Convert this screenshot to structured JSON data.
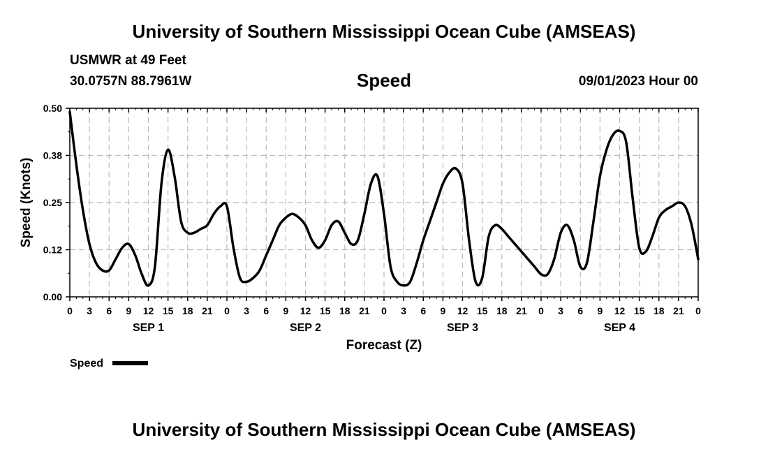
{
  "header": {
    "top_title": "University of Southern Mississippi Ocean Cube (AMSEAS)",
    "station": "USMWR at 49 Feet",
    "coords": "30.0757N  88.7961W",
    "datetime": "09/01/2023 Hour 00",
    "bottom_title": "University of Southern Mississippi Ocean Cube (AMSEAS)"
  },
  "legend": {
    "label": "Speed"
  },
  "colors": {
    "line": "#000000",
    "grid": "#bbbbbb",
    "axis": "#000000"
  },
  "chart_data": {
    "type": "line",
    "title": "Speed",
    "xlabel": "Forecast (Z)",
    "ylabel": "Speed (Knots)",
    "xlim": [
      0,
      96
    ],
    "ylim": [
      0,
      0.5
    ],
    "yticks": [
      0.0,
      0.125,
      0.25,
      0.375,
      0.5
    ],
    "ytick_labels": [
      "0.00",
      "0.12",
      "0.25",
      "0.38",
      "0.50"
    ],
    "xtick_labels": [
      "0",
      "3",
      "6",
      "9",
      "12",
      "15",
      "18",
      "21",
      "0",
      "3",
      "6",
      "9",
      "12",
      "15",
      "18",
      "21",
      "0",
      "3",
      "6",
      "9",
      "12",
      "15",
      "18",
      "21",
      "0",
      "3",
      "6",
      "9",
      "12",
      "15",
      "18",
      "21",
      "0"
    ],
    "day_labels": [
      {
        "x": 12,
        "label": "SEP 1"
      },
      {
        "x": 36,
        "label": "SEP 2"
      },
      {
        "x": 60,
        "label": "SEP 3"
      },
      {
        "x": 84,
        "label": "SEP 4"
      }
    ],
    "grid": true,
    "series": [
      {
        "name": "Speed",
        "x": [
          0,
          1,
          2,
          3,
          4,
          5,
          6,
          7,
          8,
          9,
          10,
          11,
          12,
          13,
          14,
          15,
          16,
          17,
          18,
          19,
          20,
          21,
          22,
          23,
          24,
          25,
          26,
          27,
          28,
          29,
          30,
          31,
          32,
          33,
          34,
          35,
          36,
          37,
          38,
          39,
          40,
          41,
          42,
          43,
          44,
          45,
          46,
          47,
          48,
          49,
          50,
          51,
          52,
          53,
          54,
          55,
          56,
          57,
          58,
          59,
          60,
          61,
          62,
          63,
          64,
          65,
          66,
          67,
          68,
          69,
          70,
          71,
          72,
          73,
          74,
          75,
          76,
          77,
          78,
          79,
          80,
          81,
          82,
          83,
          84,
          85,
          86,
          87,
          88,
          89,
          90,
          91,
          92,
          93,
          94,
          95,
          96
        ],
        "values": [
          0.49,
          0.35,
          0.23,
          0.14,
          0.09,
          0.07,
          0.07,
          0.1,
          0.13,
          0.14,
          0.11,
          0.06,
          0.03,
          0.08,
          0.3,
          0.39,
          0.32,
          0.2,
          0.17,
          0.17,
          0.18,
          0.19,
          0.22,
          0.24,
          0.24,
          0.13,
          0.05,
          0.04,
          0.05,
          0.07,
          0.11,
          0.15,
          0.19,
          0.21,
          0.22,
          0.21,
          0.19,
          0.15,
          0.13,
          0.15,
          0.19,
          0.2,
          0.17,
          0.14,
          0.15,
          0.22,
          0.3,
          0.32,
          0.22,
          0.08,
          0.04,
          0.03,
          0.04,
          0.09,
          0.15,
          0.2,
          0.25,
          0.3,
          0.33,
          0.34,
          0.3,
          0.15,
          0.04,
          0.05,
          0.16,
          0.19,
          0.18,
          0.16,
          0.14,
          0.12,
          0.1,
          0.08,
          0.06,
          0.06,
          0.1,
          0.17,
          0.19,
          0.15,
          0.08,
          0.09,
          0.2,
          0.32,
          0.39,
          0.43,
          0.44,
          0.41,
          0.26,
          0.13,
          0.12,
          0.16,
          0.21,
          0.23,
          0.24,
          0.25,
          0.24,
          0.19,
          0.1
        ]
      }
    ]
  }
}
